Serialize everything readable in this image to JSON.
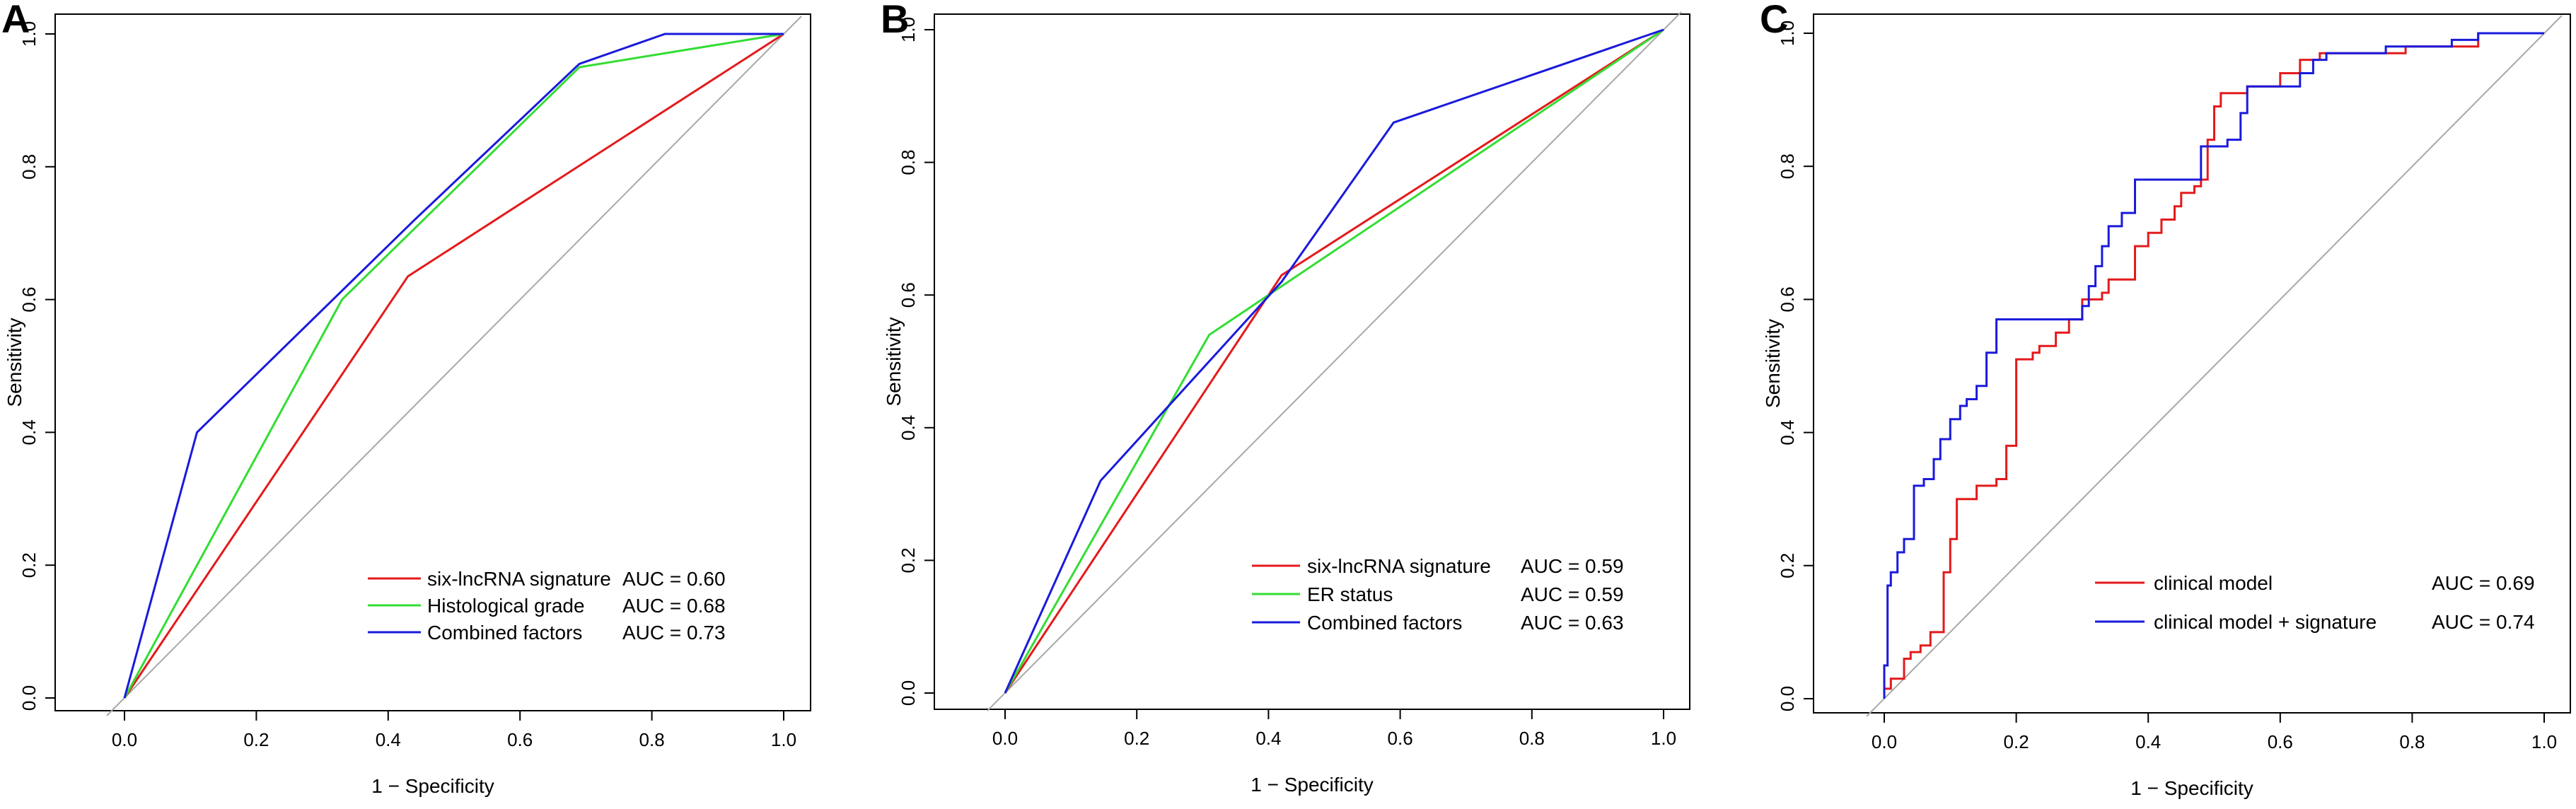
{
  "chart_data": [
    {
      "panel": "A",
      "type": "line",
      "xlabel": "1 − Specificity",
      "ylabel": "Sensitivity",
      "xlim": [
        0,
        1
      ],
      "ylim": [
        0,
        1
      ],
      "xticks": [
        "0.0",
        "0.2",
        "0.4",
        "0.6",
        "0.8",
        "1.0"
      ],
      "yticks": [
        "0.0",
        "0.2",
        "0.4",
        "0.6",
        "0.8",
        "1.0"
      ],
      "diagonal": true,
      "legend_position": "bottom-right",
      "series": [
        {
          "name": "six-lncRNA signature",
          "auc": "AUC = 0.60",
          "color": "#e41a1c",
          "x": [
            0,
            0.43,
            1
          ],
          "y": [
            0,
            0.635,
            1
          ]
        },
        {
          "name": "Histological grade",
          "auc": "AUC = 0.68",
          "color": "#33dd33",
          "x": [
            0,
            0.33,
            0.69,
            1
          ],
          "y": [
            0,
            0.6,
            0.95,
            1
          ]
        },
        {
          "name": "Combined factors",
          "auc": "AUC = 0.73",
          "color": "#1a1adc",
          "x": [
            0,
            0.11,
            0.44,
            0.69,
            0.82,
            1
          ],
          "y": [
            0,
            0.4,
            0.72,
            0.955,
            1,
            1
          ]
        }
      ]
    },
    {
      "panel": "B",
      "type": "line",
      "xlabel": "1 − Specificity",
      "ylabel": "Sensitivity",
      "xlim": [
        0,
        1
      ],
      "ylim": [
        0,
        1
      ],
      "xticks": [
        "0.0",
        "0.2",
        "0.4",
        "0.6",
        "0.8",
        "1.0"
      ],
      "yticks": [
        "0.0",
        "0.2",
        "0.4",
        "0.6",
        "0.8",
        "1.0"
      ],
      "diagonal": true,
      "legend_position": "bottom-right",
      "series": [
        {
          "name": "six-lncRNA signature",
          "auc": "AUC = 0.59",
          "color": "#e41a1c",
          "x": [
            0,
            0.42,
            1
          ],
          "y": [
            0,
            0.63,
            1
          ]
        },
        {
          "name": "ER status",
          "auc": "AUC = 0.59",
          "color": "#33dd33",
          "x": [
            0,
            0.31,
            1
          ],
          "y": [
            0,
            0.54,
            1
          ]
        },
        {
          "name": "Combined factors",
          "auc": "AUC = 0.63",
          "color": "#1a1adc",
          "x": [
            0,
            0.145,
            0.42,
            0.59,
            1
          ],
          "y": [
            0,
            0.32,
            0.62,
            0.86,
            1
          ]
        }
      ]
    },
    {
      "panel": "C",
      "type": "line",
      "step": true,
      "xlabel": "1 − Specificity",
      "ylabel": "Sensitivity",
      "xlim": [
        0,
        1
      ],
      "ylim": [
        0,
        1
      ],
      "xticks": [
        "0.0",
        "0.2",
        "0.4",
        "0.6",
        "0.8",
        "1.0"
      ],
      "yticks": [
        "0.0",
        "0.2",
        "0.4",
        "0.6",
        "0.8",
        "1.0"
      ],
      "diagonal": true,
      "legend_position": "bottom-right",
      "series": [
        {
          "name": "clinical model",
          "auc": "AUC = 0.69",
          "color": "#e41a1c",
          "x": [
            0,
            0.01,
            0.03,
            0.04,
            0.055,
            0.07,
            0.09,
            0.1,
            0.11,
            0.125,
            0.14,
            0.155,
            0.17,
            0.185,
            0.2,
            0.225,
            0.235,
            0.26,
            0.28,
            0.3,
            0.32,
            0.33,
            0.34,
            0.38,
            0.4,
            0.42,
            0.43,
            0.44,
            0.45,
            0.46,
            0.47,
            0.48,
            0.49,
            0.5,
            0.51,
            0.53,
            0.55,
            0.57,
            0.6,
            0.63,
            0.66,
            0.7,
            0.73,
            0.76,
            0.79,
            0.82,
            0.86,
            0.9,
            0.93,
            0.97,
            1
          ],
          "y": [
            0,
            0.015,
            0.03,
            0.06,
            0.07,
            0.08,
            0.1,
            0.19,
            0.24,
            0.3,
            0.3,
            0.32,
            0.32,
            0.33,
            0.38,
            0.51,
            0.52,
            0.53,
            0.55,
            0.57,
            0.6,
            0.6,
            0.61,
            0.63,
            0.68,
            0.7,
            0.72,
            0.72,
            0.74,
            0.76,
            0.76,
            0.77,
            0.78,
            0.84,
            0.89,
            0.91,
            0.91,
            0.92,
            0.92,
            0.94,
            0.96,
            0.97,
            0.97,
            0.97,
            0.97,
            0.98,
            0.98,
            0.98,
            1,
            1,
            1
          ]
        },
        {
          "name": "clinical model + signature",
          "auc": "AUC = 0.74",
          "color": "#1a1adc",
          "x": [
            0,
            0.005,
            0.01,
            0.02,
            0.03,
            0.045,
            0.06,
            0.075,
            0.085,
            0.1,
            0.115,
            0.125,
            0.14,
            0.155,
            0.17,
            0.18,
            0.2,
            0.22,
            0.3,
            0.31,
            0.32,
            0.33,
            0.34,
            0.36,
            0.38,
            0.4,
            0.42,
            0.44,
            0.48,
            0.5,
            0.52,
            0.54,
            0.55,
            0.56,
            0.6,
            0.63,
            0.65,
            0.67,
            0.69,
            0.72,
            0.76,
            0.8,
            0.86,
            0.9,
            0.95,
            1
          ],
          "y": [
            0,
            0.05,
            0.17,
            0.19,
            0.22,
            0.24,
            0.32,
            0.33,
            0.36,
            0.39,
            0.42,
            0.44,
            0.45,
            0.47,
            0.52,
            0.57,
            0.57,
            0.57,
            0.57,
            0.59,
            0.62,
            0.65,
            0.68,
            0.71,
            0.73,
            0.78,
            0.78,
            0.78,
            0.78,
            0.83,
            0.83,
            0.84,
            0.88,
            0.92,
            0.92,
            0.92,
            0.94,
            0.96,
            0.97,
            0.97,
            0.97,
            0.98,
            0.98,
            0.99,
            1,
            1
          ]
        }
      ]
    }
  ]
}
